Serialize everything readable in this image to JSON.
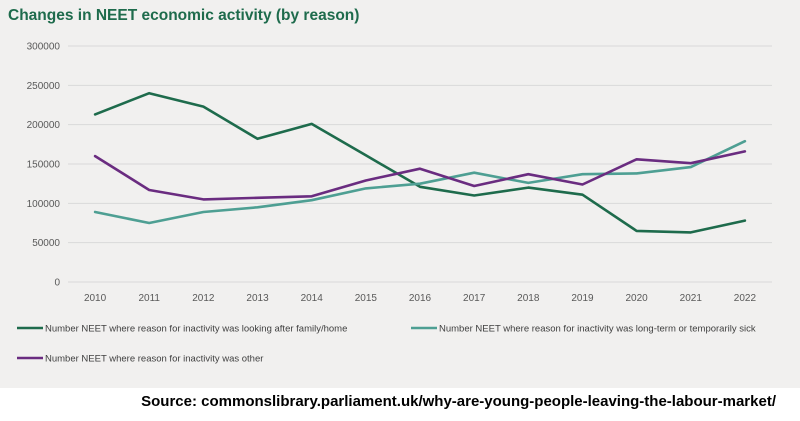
{
  "chart_data": {
    "type": "line",
    "title": "Changes in NEET economic activity (by reason)",
    "xlabel": "",
    "ylabel": "",
    "ylim": [
      0,
      300000
    ],
    "yticks": [
      0,
      50000,
      100000,
      150000,
      200000,
      250000,
      300000
    ],
    "yticklabels": [
      "0",
      "50000",
      "100000",
      "150000",
      "200000",
      "250000",
      "300000"
    ],
    "categories": [
      "2010",
      "2011",
      "2012",
      "2013",
      "2014",
      "2015",
      "2016",
      "2017",
      "2018",
      "2019",
      "2020",
      "2021",
      "2022"
    ],
    "grid": true,
    "legend_position": "bottom",
    "series": [
      {
        "name": "Number NEET where reason for inactivity was looking after family/home",
        "color": "#1e6b4c",
        "values": [
          213000,
          240000,
          223000,
          182000,
          201000,
          161000,
          121000,
          110000,
          120000,
          111000,
          65000,
          63000,
          78000
        ]
      },
      {
        "name": "Number NEET where reason for inactivity was long-term or temporarily sick",
        "color": "#4e9f93",
        "values": [
          89000,
          75000,
          89000,
          95000,
          104000,
          119000,
          125000,
          139000,
          126000,
          137000,
          138000,
          146000,
          179000
        ]
      },
      {
        "name": "Number NEET where reason for inactivity was other",
        "color": "#6a2c80",
        "values": [
          160000,
          117000,
          105000,
          107000,
          109000,
          129000,
          144000,
          122000,
          137000,
          124000,
          156000,
          151000,
          166000
        ]
      }
    ]
  },
  "source_text": "Source: commonslibrary.parliament.uk/why-are-young-people-leaving-the-labour-market/"
}
